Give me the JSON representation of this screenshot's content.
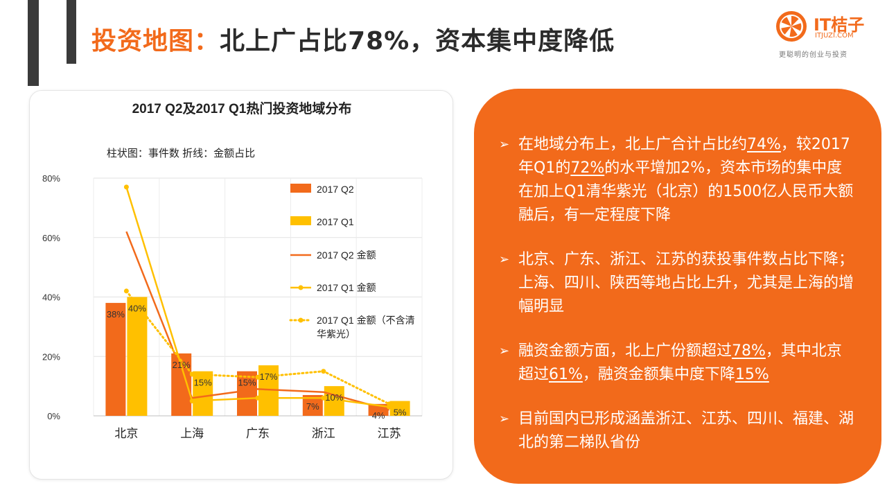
{
  "slide": {
    "title_accent": "投资地图：",
    "title_rest": "北上广占比78%，资本集中度降低"
  },
  "logo": {
    "name": "IT桔子",
    "url": "ITJUZI.COM",
    "slogan": "更聪明的创业与投资"
  },
  "colors": {
    "orange": "#f26a1b",
    "yellow": "#ffc000",
    "dark": "#3a3a3a"
  },
  "chart_data": {
    "type": "bar",
    "title": "2017 Q2及2017 Q1热门投资地域分布",
    "subtitle": "柱状图：事件数  折线：金额占比",
    "categories": [
      "北京",
      "上海",
      "广东",
      "浙江",
      "江苏"
    ],
    "ylim": [
      0,
      80
    ],
    "yticks": [
      "0%",
      "20%",
      "40%",
      "60%",
      "80%"
    ],
    "grid": true,
    "legend_position": "right",
    "bar_series": [
      {
        "name": "2017 Q2",
        "color": "#f26a1b",
        "values": [
          38,
          21,
          15,
          7,
          4
        ],
        "labels": [
          "38%",
          "21%",
          "15%",
          "7%",
          "4%"
        ]
      },
      {
        "name": "2017 Q1",
        "color": "#ffc000",
        "values": [
          40,
          15,
          17,
          10,
          5
        ],
        "labels": [
          "40%",
          "15%",
          "17%",
          "10%",
          "5%"
        ]
      }
    ],
    "line_series": [
      {
        "name": "2017 Q2 金额",
        "color": "#f26a1b",
        "style": "solid",
        "marker": false,
        "values": [
          62,
          6,
          9,
          8,
          2
        ]
      },
      {
        "name": "2017 Q1 金额",
        "color": "#ffc000",
        "style": "solid",
        "marker": true,
        "values": [
          77,
          5,
          6,
          6,
          3
        ]
      },
      {
        "name": "2017 Q1 金额（不含清华紫光）",
        "legend_lines": [
          "2017 Q1 金额（不含清",
          "华紫光）"
        ],
        "color": "#ffc000",
        "style": "dotted",
        "marker": true,
        "values": [
          42,
          14,
          13,
          15,
          4
        ]
      }
    ]
  },
  "bullets": [
    {
      "mark": "➢",
      "parts": [
        {
          "t": "在地域分布上，北上广合计占比约"
        },
        {
          "t": "74%",
          "u": true
        },
        {
          "t": "，较2017年Q1的"
        },
        {
          "t": "72%",
          "u": true
        },
        {
          "t": "的水平增加2%，资本市场的集中度在加上Q1清华紫光（北京）的1500亿人民币大额融后，有一定程度下降"
        }
      ]
    },
    {
      "mark": "➢",
      "parts": [
        {
          "t": "北京、广东、浙江、江苏的获投事件数占比下降；上海、四川、陕西等地占比上升，尤其是上海的增幅明显"
        }
      ]
    },
    {
      "mark": "➢",
      "parts": [
        {
          "t": "融资金额方面，北上广份额超过"
        },
        {
          "t": "78%",
          "u": true
        },
        {
          "t": "，其中北京超过"
        },
        {
          "t": "61%",
          "u": true
        },
        {
          "t": "，融资金额集中度下降"
        },
        {
          "t": "15%",
          "u": true
        }
      ]
    },
    {
      "mark": "➢",
      "parts": [
        {
          "t": "目前国内已形成涵盖浙江、江苏、四川、福建、湖北的第二梯队省份"
        }
      ]
    }
  ]
}
